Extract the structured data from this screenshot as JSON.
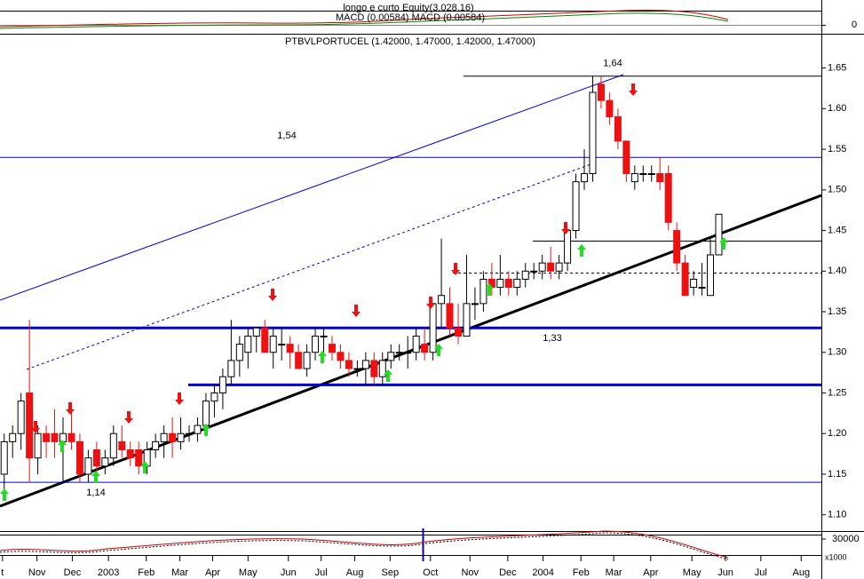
{
  "chart_data": [
    {
      "type": "candlestick",
      "title": "PTBVLPORTUCEL (1.42000, 1.47000, 1.42000, 1.47000)",
      "xlim": [
        -0.5,
        97.2
      ],
      "xticks": [
        {
          "value": -0.2,
          "label": "t"
        },
        {
          "value": 3.9,
          "label": "Nov"
        },
        {
          "value": 8.1,
          "label": "Dec"
        },
        {
          "value": 12.4,
          "label": "2003"
        },
        {
          "value": 16.9,
          "label": "Feb"
        },
        {
          "value": 20.9,
          "label": "Mar"
        },
        {
          "value": 24.8,
          "label": "Apr"
        },
        {
          "value": 29,
          "label": "May"
        },
        {
          "value": 33.8,
          "label": "Jun"
        },
        {
          "value": 37.7,
          "label": "Jul"
        },
        {
          "value": 41.7,
          "label": "Aug"
        },
        {
          "value": 45.9,
          "label": "Sep"
        },
        {
          "value": 50.7,
          "label": "Oct"
        },
        {
          "value": 55.4,
          "label": "Nov"
        },
        {
          "value": 59.9,
          "label": "Dec"
        },
        {
          "value": 64.1,
          "label": "2004"
        },
        {
          "value": 68.6,
          "label": "Feb"
        },
        {
          "value": 72.5,
          "label": "Mar"
        },
        {
          "value": 76.9,
          "label": "Apr"
        },
        {
          "value": 81.8,
          "label": "May"
        },
        {
          "value": 85.8,
          "label": "Jun"
        },
        {
          "value": 90,
          "label": "Jul"
        },
        {
          "value": 94.8,
          "label": "Aug"
        }
      ],
      "ylim": [
        1.08,
        1.69
      ],
      "yticks": [
        {
          "value": 1.1,
          "label": "1.10"
        },
        1.15,
        {
          "value": 1.2,
          "label": "1.20"
        },
        1.25,
        {
          "value": 1.3,
          "label": "1.30"
        },
        1.35,
        {
          "value": 1.4,
          "label": "1.40"
        },
        1.45,
        {
          "value": 1.5,
          "label": "1.50"
        },
        1.55,
        {
          "value": 1.6,
          "label": "1.60"
        },
        1.65
      ],
      "up_color": "#ffffff",
      "down_color": "#ee1111",
      "annotations": [
        {
          "text": "1,54",
          "value": 1.54
        },
        {
          "text": "1,64",
          "value": 1.64
        },
        {
          "text": "1,33",
          "value": 1.33
        },
        {
          "text": "1,14",
          "value": 1.14
        }
      ],
      "ohlc": [
        [
          1.15,
          1.2,
          1.13,
          1.19
        ],
        [
          1.19,
          1.21,
          1.17,
          1.2
        ],
        [
          1.2,
          1.25,
          1.18,
          1.24
        ],
        [
          1.25,
          1.34,
          1.14,
          1.17
        ],
        [
          1.17,
          1.21,
          1.15,
          1.2
        ],
        [
          1.2,
          1.21,
          1.17,
          1.19
        ],
        [
          1.2,
          1.23,
          1.17,
          1.19
        ],
        [
          1.19,
          1.22,
          1.14,
          1.2
        ],
        [
          1.2,
          1.23,
          1.18,
          1.19
        ],
        [
          1.19,
          1.2,
          1.14,
          1.15
        ],
        [
          1.15,
          1.18,
          1.14,
          1.17
        ],
        [
          1.18,
          1.19,
          1.15,
          1.16
        ],
        [
          1.16,
          1.18,
          1.15,
          1.17
        ],
        [
          1.17,
          1.21,
          1.16,
          1.2
        ],
        [
          1.19,
          1.21,
          1.17,
          1.18
        ],
        [
          1.18,
          1.19,
          1.16,
          1.17
        ],
        [
          1.18,
          1.19,
          1.15,
          1.16
        ],
        [
          1.16,
          1.19,
          1.15,
          1.18
        ],
        [
          1.18,
          1.2,
          1.17,
          1.19
        ],
        [
          1.19,
          1.21,
          1.17,
          1.2
        ],
        [
          1.2,
          1.22,
          1.17,
          1.19
        ],
        [
          1.19,
          1.22,
          1.18,
          1.2
        ],
        [
          1.2,
          1.21,
          1.19,
          1.2
        ],
        [
          1.2,
          1.22,
          1.19,
          1.21
        ],
        [
          1.21,
          1.25,
          1.2,
          1.24
        ],
        [
          1.24,
          1.26,
          1.22,
          1.25
        ],
        [
          1.25,
          1.28,
          1.23,
          1.27
        ],
        [
          1.27,
          1.34,
          1.26,
          1.29
        ],
        [
          1.29,
          1.32,
          1.27,
          1.31
        ],
        [
          1.3,
          1.33,
          1.28,
          1.32
        ],
        [
          1.32,
          1.33,
          1.3,
          1.33
        ],
        [
          1.33,
          1.34,
          1.3,
          1.3
        ],
        [
          1.3,
          1.33,
          1.28,
          1.32
        ],
        [
          1.31,
          1.33,
          1.29,
          1.31
        ],
        [
          1.31,
          1.32,
          1.28,
          1.3
        ],
        [
          1.3,
          1.31,
          1.28,
          1.28
        ],
        [
          1.28,
          1.31,
          1.27,
          1.3
        ],
        [
          1.3,
          1.33,
          1.29,
          1.32
        ],
        [
          1.32,
          1.33,
          1.3,
          1.32
        ],
        [
          1.31,
          1.32,
          1.29,
          1.3
        ],
        [
          1.3,
          1.31,
          1.28,
          1.29
        ],
        [
          1.29,
          1.3,
          1.27,
          1.28
        ],
        [
          1.28,
          1.29,
          1.27,
          1.28
        ],
        [
          1.28,
          1.3,
          1.26,
          1.29
        ],
        [
          1.29,
          1.3,
          1.26,
          1.27
        ],
        [
          1.27,
          1.3,
          1.26,
          1.29
        ],
        [
          1.29,
          1.31,
          1.28,
          1.3
        ],
        [
          1.3,
          1.31,
          1.29,
          1.3
        ],
        [
          1.3,
          1.32,
          1.28,
          1.3
        ],
        [
          1.3,
          1.33,
          1.29,
          1.32
        ],
        [
          1.31,
          1.33,
          1.29,
          1.3
        ],
        [
          1.3,
          1.36,
          1.29,
          1.36
        ],
        [
          1.36,
          1.44,
          1.33,
          1.37
        ],
        [
          1.36,
          1.38,
          1.32,
          1.33
        ],
        [
          1.33,
          1.36,
          1.31,
          1.32
        ],
        [
          1.32,
          1.42,
          1.32,
          1.36
        ],
        [
          1.36,
          1.38,
          1.34,
          1.36
        ],
        [
          1.36,
          1.4,
          1.35,
          1.39
        ],
        [
          1.39,
          1.41,
          1.37,
          1.38
        ],
        [
          1.38,
          1.42,
          1.37,
          1.39
        ],
        [
          1.39,
          1.4,
          1.37,
          1.38
        ],
        [
          1.38,
          1.4,
          1.37,
          1.39
        ],
        [
          1.39,
          1.41,
          1.38,
          1.4
        ],
        [
          1.4,
          1.41,
          1.39,
          1.4
        ],
        [
          1.4,
          1.42,
          1.39,
          1.41
        ],
        [
          1.41,
          1.43,
          1.39,
          1.4
        ],
        [
          1.4,
          1.42,
          1.39,
          1.41
        ],
        [
          1.41,
          1.45,
          1.4,
          1.45
        ],
        [
          1.45,
          1.52,
          1.44,
          1.51
        ],
        [
          1.51,
          1.55,
          1.5,
          1.52
        ],
        [
          1.52,
          1.64,
          1.51,
          1.62
        ],
        [
          1.63,
          1.64,
          1.6,
          1.61
        ],
        [
          1.61,
          1.62,
          1.58,
          1.59
        ],
        [
          1.59,
          1.6,
          1.55,
          1.56
        ],
        [
          1.56,
          1.56,
          1.51,
          1.52
        ],
        [
          1.51,
          1.53,
          1.5,
          1.52
        ],
        [
          1.52,
          1.53,
          1.51,
          1.52
        ],
        [
          1.52,
          1.53,
          1.51,
          1.52
        ],
        [
          1.52,
          1.54,
          1.5,
          1.51
        ],
        [
          1.52,
          1.53,
          1.45,
          1.46
        ],
        [
          1.45,
          1.46,
          1.4,
          1.41
        ],
        [
          1.41,
          1.42,
          1.37,
          1.37
        ],
        [
          1.38,
          1.4,
          1.37,
          1.39
        ],
        [
          1.38,
          1.41,
          1.37,
          1.38
        ],
        [
          1.37,
          1.44,
          1.37,
          1.42
        ],
        [
          1.42,
          1.47,
          1.42,
          1.47
        ]
      ]
    },
    {
      "type": "line",
      "title": "longo e curto Equity(3,028.16)",
      "subtitle": "MACD (0.00584) MACD (0.00584)",
      "yticks": [
        0
      ]
    },
    {
      "type": "line",
      "yticks": [
        30000
      ],
      "y_label": "x1000"
    }
  ]
}
